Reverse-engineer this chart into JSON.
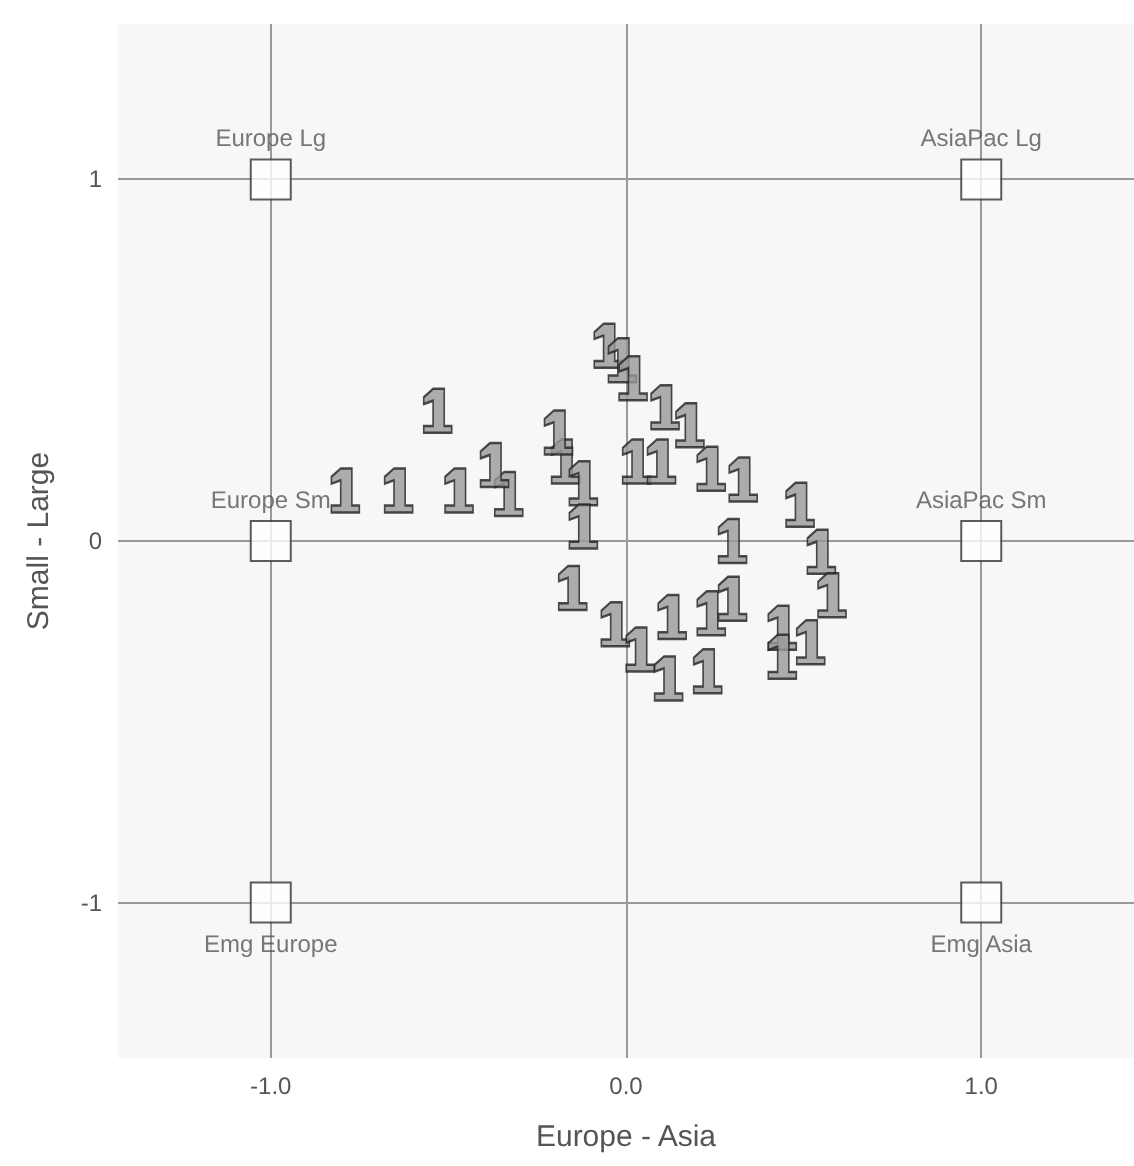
{
  "chart_data": {
    "type": "scatter",
    "xlabel": "Europe - Asia",
    "ylabel": "Small - Large",
    "xlim": [
      -1.43,
      1.43
    ],
    "ylim": [
      -1.43,
      1.43
    ],
    "xticks": [
      {
        "value": -1,
        "label": "-1.0"
      },
      {
        "value": 0,
        "label": "0.0"
      },
      {
        "value": 1,
        "label": "1.0"
      }
    ],
    "yticks": [
      -1,
      0,
      1
    ],
    "grid": true,
    "series": [
      {
        "marker": "square",
        "color": "#ffffff",
        "x": [
          -1,
          1,
          -1,
          1,
          -1,
          1
        ],
        "values": [
          1,
          1,
          0,
          0,
          -1,
          -1
        ],
        "value_labels": [
          "Europe Lg",
          "AsiaPac Lg",
          "Europe Sm",
          "AsiaPac Sm",
          "Emg Europe",
          "Emg Asia"
        ]
      },
      {
        "color": "#999999",
        "x": [
          -0.79,
          -0.64,
          -0.47,
          -0.33,
          -0.37,
          -0.53,
          -0.17,
          -0.12,
          -0.12,
          -0.15,
          -0.03,
          0.04,
          0.13,
          0.24,
          0.3,
          0.03,
          0.1,
          0.11,
          0.18,
          0.24,
          0.33,
          0.49,
          0.3,
          0.55,
          0.58,
          0.44,
          0.52,
          0.44,
          0.23,
          0.12,
          -0.05,
          -0.01,
          0.02,
          -0.19
        ],
        "values": [
          0.14,
          0.14,
          0.14,
          0.13,
          0.21,
          0.36,
          0.22,
          0.16,
          0.04,
          -0.13,
          -0.23,
          -0.3,
          -0.21,
          -0.2,
          -0.16,
          0.22,
          0.22,
          0.37,
          0.32,
          0.2,
          0.17,
          0.1,
          0.0,
          -0.03,
          -0.15,
          -0.24,
          -0.28,
          -0.32,
          -0.36,
          -0.38,
          0.54,
          0.5,
          0.45,
          0.3
        ]
      }
    ]
  }
}
